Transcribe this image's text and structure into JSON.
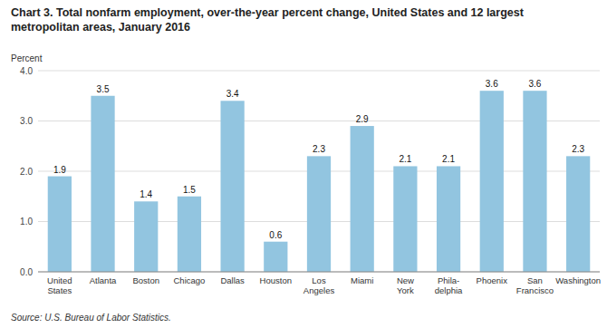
{
  "chart_data": {
    "type": "bar",
    "title": "Chart 3. Total nonfarm employment, over-the-year percent change, United States and 12 largest\nmetropolitan areas, January 2016",
    "y_label": "Percent",
    "source": "Source: U.S. Bureau of Labor Statistics.",
    "categories": [
      "United\nStates",
      "Atlanta",
      "Boston",
      "Chicago",
      "Dallas",
      "Houston",
      "Los\nAngeles",
      "Miami",
      "New\nYork",
      "Phila-\ndelphia",
      "Phoenix",
      "San\nFrancisco",
      "Washington"
    ],
    "values": [
      1.9,
      3.5,
      1.4,
      1.5,
      3.4,
      0.6,
      2.3,
      2.9,
      2.1,
      2.1,
      3.6,
      3.6,
      2.3
    ],
    "color": "#92C5E0",
    "ylim": [
      0.0,
      4.0
    ],
    "yticks": [
      {
        "value": 0.0,
        "label": "0.0"
      },
      {
        "value": 1.0,
        "label": "1.0"
      },
      {
        "value": 2.0,
        "label": "2.0"
      },
      {
        "value": 3.0,
        "label": "3.0"
      },
      {
        "value": 4.0,
        "label": "4.0"
      }
    ],
    "grid": true,
    "data_labels": true
  }
}
